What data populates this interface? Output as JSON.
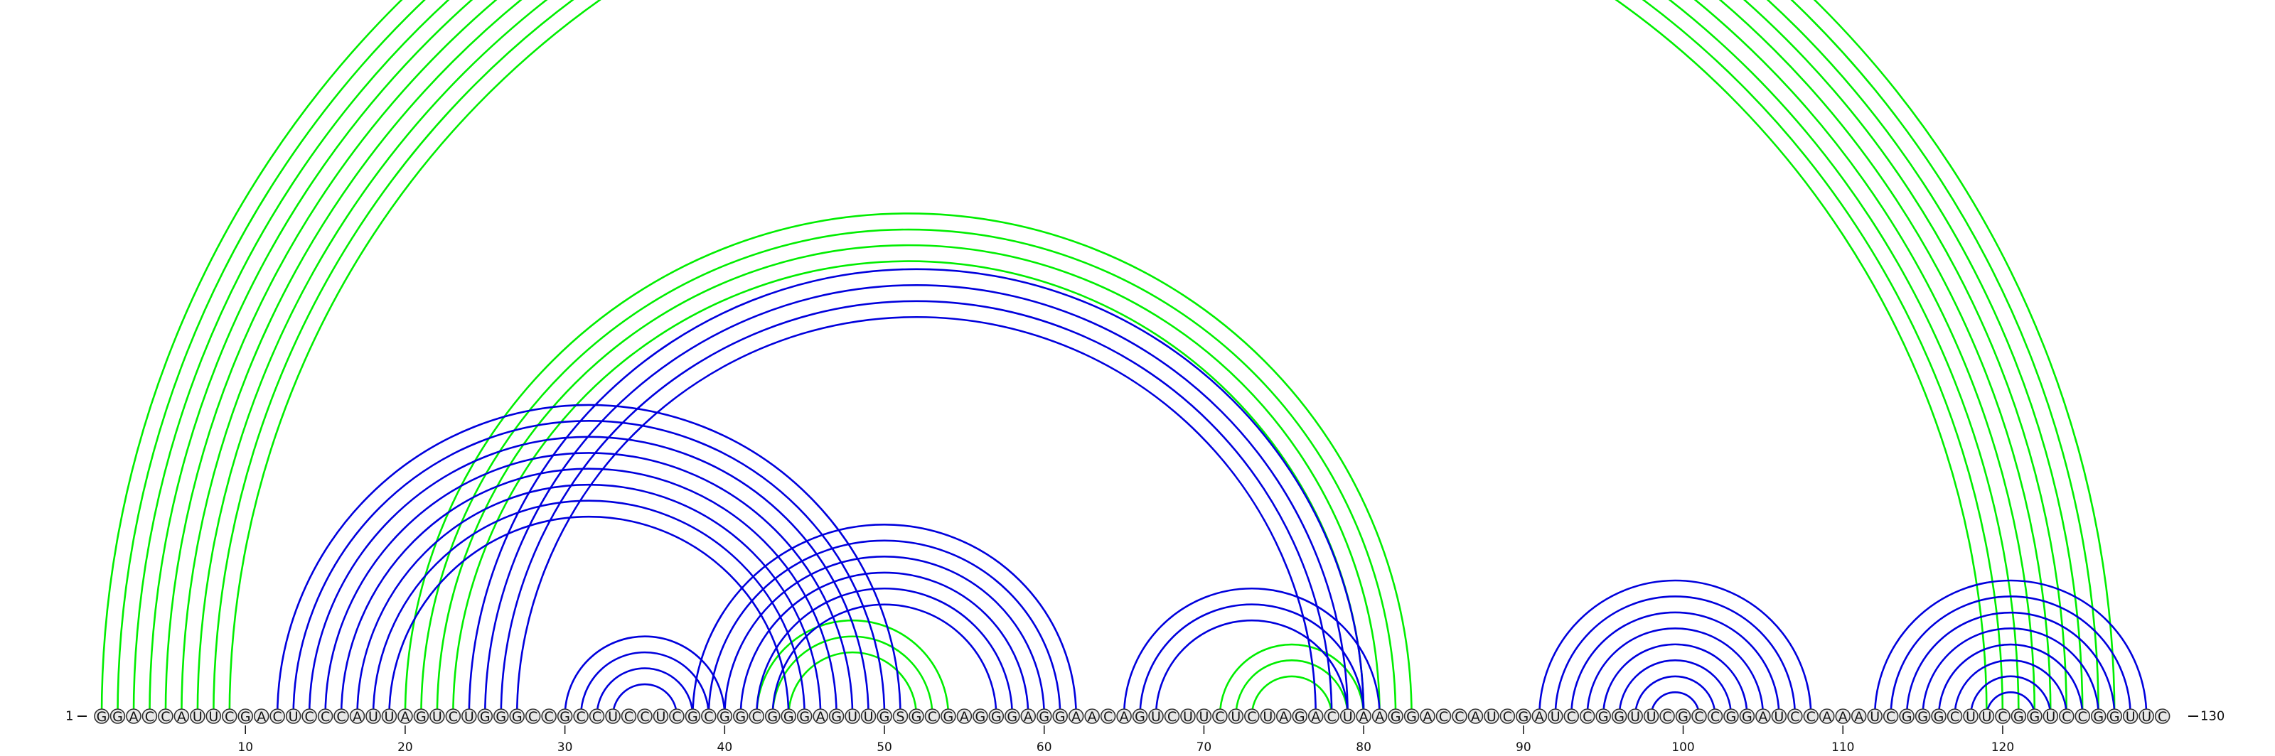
{
  "sequence": "GGACCAUUCGACUCCCAUUAGUCUGGGCCGCCUCCUCGCGGCGGGAGUUGSGCGAGGGAGGAACAGUCUUCUCUAGACUAAGGACCAUCGAUCCGGUUCGCCGGAUCCAAAUCGGGCUUCGGUCCGGUUC",
  "start_label": "1",
  "end_label": "130",
  "ticks": [
    "10",
    "20",
    "30",
    "40",
    "50",
    "60",
    "70",
    "80",
    "90",
    "100",
    "110",
    "120"
  ],
  "colors": {
    "green": "#00ee00",
    "blue": "#0000dd"
  },
  "chart_data": {
    "type": "arc",
    "length": 130,
    "green_pairs": [
      [
        1,
        127
      ],
      [
        2,
        126
      ],
      [
        3,
        125
      ],
      [
        4,
        124
      ],
      [
        5,
        123
      ],
      [
        6,
        122
      ],
      [
        7,
        121
      ],
      [
        8,
        120
      ],
      [
        9,
        119
      ],
      [
        20,
        83
      ],
      [
        21,
        82
      ],
      [
        22,
        81
      ],
      [
        23,
        80
      ],
      [
        42,
        54
      ],
      [
        43,
        53
      ],
      [
        44,
        52
      ],
      [
        71,
        80
      ],
      [
        72,
        79
      ],
      [
        73,
        78
      ]
    ],
    "blue_pairs": [
      [
        12,
        51
      ],
      [
        13,
        50
      ],
      [
        14,
        49
      ],
      [
        15,
        48
      ],
      [
        16,
        47
      ],
      [
        17,
        46
      ],
      [
        18,
        45
      ],
      [
        19,
        44
      ],
      [
        24,
        80
      ],
      [
        25,
        79
      ],
      [
        26,
        78
      ],
      [
        27,
        77
      ],
      [
        30,
        40
      ],
      [
        31,
        39
      ],
      [
        32,
        38
      ],
      [
        33,
        37
      ],
      [
        38,
        62
      ],
      [
        39,
        61
      ],
      [
        40,
        60
      ],
      [
        41,
        59
      ],
      [
        42,
        58
      ],
      [
        43,
        57
      ],
      [
        65,
        81
      ],
      [
        66,
        80
      ],
      [
        67,
        79
      ],
      [
        91,
        108
      ],
      [
        92,
        107
      ],
      [
        93,
        106
      ],
      [
        94,
        105
      ],
      [
        95,
        104
      ],
      [
        96,
        103
      ],
      [
        97,
        102
      ],
      [
        98,
        101
      ],
      [
        112,
        129
      ],
      [
        113,
        128
      ],
      [
        114,
        127
      ],
      [
        115,
        126
      ],
      [
        116,
        125
      ],
      [
        117,
        124
      ],
      [
        118,
        123
      ],
      [
        119,
        122
      ]
    ]
  }
}
